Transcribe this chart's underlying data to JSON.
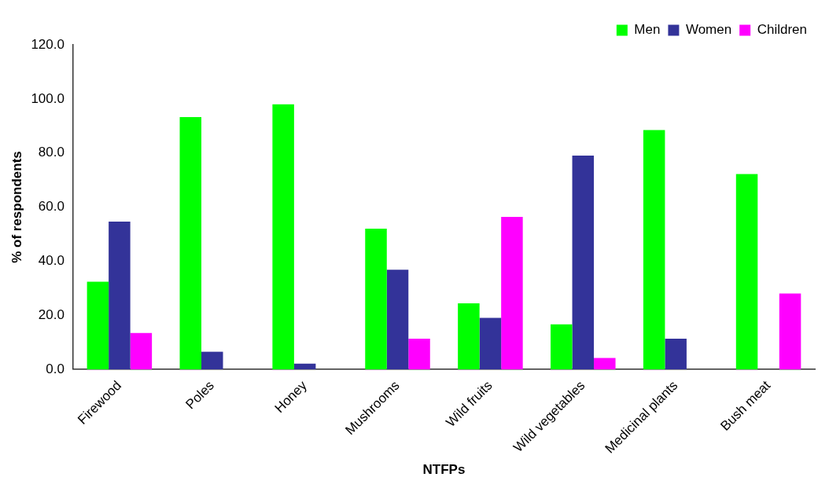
{
  "chart_data": {
    "type": "bar",
    "xlabel": "NTFPs",
    "ylabel": "% of respondents",
    "categories": [
      "Firewood",
      "Poles",
      "Honey",
      "Mushrooms",
      "Wild fruits",
      "Wild vegetables",
      "Medicinal plants",
      "Bush meat"
    ],
    "series": [
      {
        "name": "Men",
        "color": "#00ff00",
        "values": [
          32.4,
          93.3,
          98.0,
          52.0,
          24.4,
          16.6,
          88.5,
          72.2
        ]
      },
      {
        "name": "Women",
        "color": "#333399",
        "values": [
          54.6,
          6.5,
          2.1,
          36.8,
          19.0,
          79.0,
          11.3,
          null
        ]
      },
      {
        "name": "Children",
        "color": "#ff00ff",
        "values": [
          13.4,
          null,
          null,
          11.3,
          56.4,
          4.2,
          null,
          28.0
        ]
      }
    ],
    "ylim": [
      0,
      120
    ],
    "yticks": [
      {
        "value": 0,
        "label": "0.0"
      },
      {
        "value": 20,
        "label": "20.0"
      },
      {
        "value": 40,
        "label": "40.0"
      },
      {
        "value": 60,
        "label": "60.0"
      },
      {
        "value": 80,
        "label": "80.0"
      },
      {
        "value": 100,
        "label": "100.0"
      },
      {
        "value": 120,
        "label": "120.0"
      }
    ],
    "grid": false,
    "legend": "top right"
  }
}
